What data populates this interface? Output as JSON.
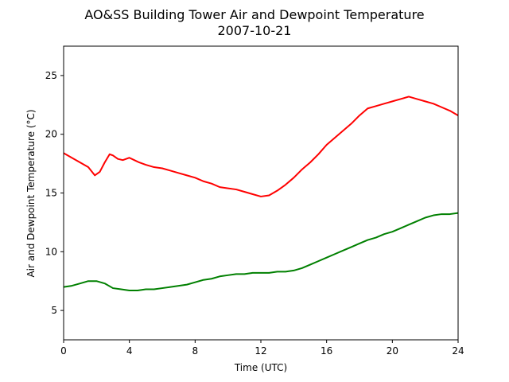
{
  "chart_data": {
    "type": "line",
    "title": "AO&SS Building Tower Air and Dewpoint Temperature",
    "subtitle": "2007-10-21",
    "xlabel": "Time (UTC)",
    "ylabel": "Air and Dewpoint Temperature (°C)",
    "xlim": [
      0,
      24
    ],
    "ylim": [
      2.5,
      27.5
    ],
    "xticks": [
      0,
      4,
      8,
      12,
      16,
      20,
      24
    ],
    "yticks": [
      5,
      10,
      15,
      20,
      25
    ],
    "grid": false,
    "legend": "none",
    "series": [
      {
        "color": "#ff0000",
        "x": [
          0,
          0.5,
          1,
          1.5,
          1.9,
          2.2,
          2.5,
          2.8,
          3.0,
          3.3,
          3.6,
          4.0,
          4.3,
          4.6,
          5,
          5.5,
          6,
          6.5,
          7,
          7.5,
          8,
          8.5,
          9,
          9.5,
          10,
          10.5,
          11,
          11.5,
          12,
          12.5,
          13,
          13.5,
          14,
          14.5,
          15,
          15.5,
          16,
          16.5,
          17,
          17.5,
          18,
          18.5,
          19,
          19.5,
          20,
          20.5,
          21,
          21.5,
          22,
          22.5,
          23,
          23.5,
          24
        ],
        "y": [
          18.4,
          18.0,
          17.6,
          17.2,
          16.5,
          16.8,
          17.6,
          18.3,
          18.2,
          17.9,
          17.8,
          18.0,
          17.8,
          17.6,
          17.4,
          17.2,
          17.1,
          16.9,
          16.7,
          16.5,
          16.3,
          16.0,
          15.8,
          15.5,
          15.4,
          15.3,
          15.1,
          14.9,
          14.7,
          14.8,
          15.2,
          15.7,
          16.3,
          17.0,
          17.6,
          18.3,
          19.1,
          19.7,
          20.3,
          20.9,
          21.6,
          22.2,
          22.4,
          22.6,
          22.8,
          23.0,
          23.2,
          23.0,
          22.8,
          22.6,
          22.3,
          22.0,
          21.6
        ]
      },
      {
        "color": "#008000",
        "x": [
          0,
          0.5,
          1,
          1.5,
          2.0,
          2.5,
          3.0,
          3.5,
          4.0,
          4.5,
          5,
          5.5,
          6,
          6.5,
          7,
          7.5,
          8,
          8.5,
          9,
          9.5,
          10,
          10.5,
          11,
          11.5,
          12,
          12.5,
          13,
          13.5,
          14,
          14.5,
          15,
          15.5,
          16,
          16.5,
          17,
          17.5,
          18,
          18.5,
          19,
          19.5,
          20,
          20.5,
          21,
          21.5,
          22,
          22.5,
          23,
          23.5,
          24
        ],
        "y": [
          7.0,
          7.1,
          7.3,
          7.5,
          7.5,
          7.3,
          6.9,
          6.8,
          6.7,
          6.7,
          6.8,
          6.8,
          6.9,
          7.0,
          7.1,
          7.2,
          7.4,
          7.6,
          7.7,
          7.9,
          8.0,
          8.1,
          8.1,
          8.2,
          8.2,
          8.2,
          8.3,
          8.3,
          8.4,
          8.6,
          8.9,
          9.2,
          9.5,
          9.8,
          10.1,
          10.4,
          10.7,
          11.0,
          11.2,
          11.5,
          11.7,
          12.0,
          12.3,
          12.6,
          12.9,
          13.1,
          13.2,
          13.2,
          13.3
        ]
      }
    ]
  }
}
